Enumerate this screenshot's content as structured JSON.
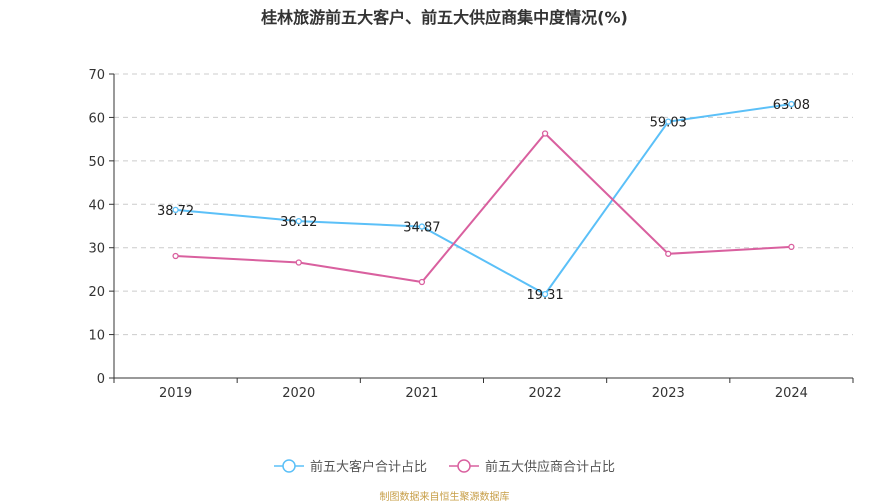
{
  "chart_data": {
    "type": "line",
    "title": "桂林旅游前五大客户、前五大供应商集中度情况(%)",
    "categories": [
      "2019",
      "2020",
      "2021",
      "2022",
      "2023",
      "2024"
    ],
    "ylim": [
      0,
      70
    ],
    "yticks": [
      0,
      10,
      20,
      30,
      40,
      50,
      60,
      70
    ],
    "grid": true,
    "legend_position": "bottom",
    "series": [
      {
        "name": "前五大客户合计占比",
        "color": "#5bc0f8",
        "values": [
          38.72,
          36.12,
          34.87,
          19.31,
          59.03,
          63.08
        ],
        "show_labels": true
      },
      {
        "name": "前五大供应商合计占比",
        "color": "#d9609f",
        "values": [
          28.1,
          26.6,
          22.1,
          56.3,
          28.6,
          30.2
        ],
        "show_labels": false
      }
    ]
  },
  "source": "制图数据来自恒生聚源数据库"
}
